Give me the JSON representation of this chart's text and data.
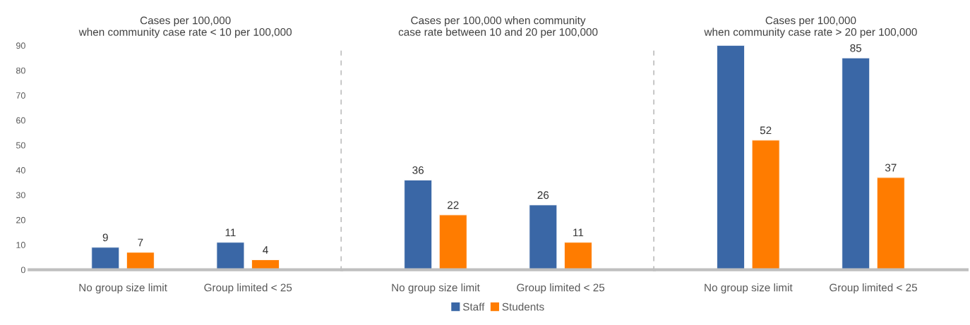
{
  "chart_data": [
    {
      "type": "bar",
      "title": "Cases per 100,000\nwhen community case rate < 10 per 100,000",
      "categories": [
        "No group size limit",
        "Group limited < 25"
      ],
      "series": [
        {
          "color": "#3a67a6",
          "values": [
            9,
            11
          ],
          "value_labels": [
            "9",
            "11"
          ]
        },
        {
          "color": "#ff7c00",
          "values": [
            7,
            4
          ],
          "value_labels": [
            "7",
            "4"
          ]
        }
      ],
      "ylim": [
        0,
        90
      ],
      "yticks": [
        0,
        10,
        20,
        30,
        40,
        50,
        60,
        70,
        80,
        90
      ],
      "grid": false
    },
    {
      "type": "bar",
      "title": "Cases per 100,000 when community\ncase rate between 10 and 20 per 100,000",
      "categories": [
        "No group size limit",
        "Group limited < 25"
      ],
      "series": [
        {
          "name": "Staff",
          "color": "#3a67a6",
          "values": [
            36,
            26
          ],
          "value_labels": [
            "36",
            "26"
          ]
        },
        {
          "name": "Students",
          "color": "#ff7c00",
          "values": [
            22,
            11
          ],
          "value_labels": [
            "22",
            "11"
          ]
        }
      ],
      "ylim": [
        0,
        90
      ],
      "yticks": [
        0,
        10,
        20,
        30,
        40,
        50,
        60,
        70,
        80,
        90
      ],
      "tick_labels": "x",
      "grid": false,
      "legend": "bottom"
    },
    {
      "type": "bar",
      "title": "Cases per 100,000\nwhen community case rate > 20 per 100,000",
      "categories": [
        "No group size limit",
        "Group limited < 25"
      ],
      "series": [
        {
          "color": "#3a67a6",
          "values": [
            90,
            85
          ],
          "value_labels": [
            null,
            "85"
          ]
        },
        {
          "color": "#ff7c00",
          "values": [
            52,
            37
          ],
          "value_labels": [
            "52",
            "37"
          ]
        }
      ],
      "ylim": [
        0,
        90
      ],
      "yticks": [
        0,
        10,
        20,
        30,
        40,
        50,
        60,
        70,
        80,
        90
      ],
      "tick_labels": "x",
      "grid": false
    }
  ]
}
